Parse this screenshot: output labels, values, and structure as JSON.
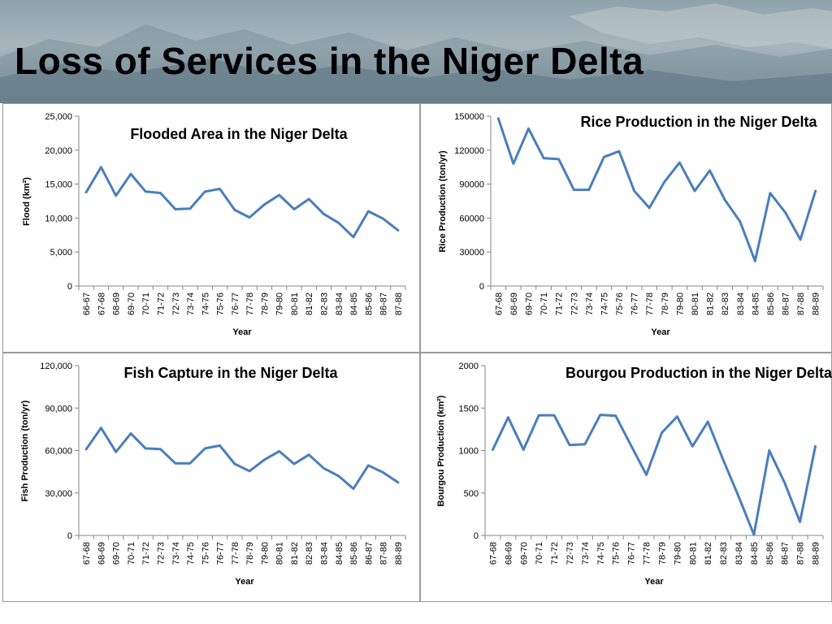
{
  "slide": {
    "title": "Loss of Services in the Niger Delta"
  },
  "colors": {
    "series": "#4a7ebb",
    "axis": "#868686"
  },
  "chart_data": [
    {
      "type": "line",
      "title": "Flooded Area in the Niger Delta",
      "xlabel": "Year",
      "ylabel": "Flood (km²)",
      "ylim": [
        0,
        25000
      ],
      "yticks": [
        "0",
        "5,000",
        "10,000",
        "15,000",
        "20,000",
        "25,000"
      ],
      "categories": [
        "66-67",
        "67-68",
        "68-69",
        "69-70",
        "70-71",
        "71-72",
        "72-73",
        "73-74",
        "74-75",
        "75-76",
        "76-77",
        "77-78",
        "78-79",
        "79-80",
        "80-81",
        "81-82",
        "82-83",
        "83-84",
        "84-85",
        "85-86",
        "86-87",
        "87-88"
      ],
      "series": [
        {
          "values": [
            13800,
            17500,
            13300,
            16500,
            13900,
            13700,
            11300,
            11400,
            13900,
            14300,
            11200,
            10100,
            12000,
            13400,
            11300,
            12800,
            10600,
            9300,
            7200,
            11000,
            9900,
            8200
          ]
        }
      ],
      "legend": "none",
      "grid": false
    },
    {
      "type": "line",
      "title": "Rice Production in the Niger Delta",
      "xlabel": "Year",
      "ylabel": "Rice Production (ton/yr)",
      "ylim": [
        0,
        150000
      ],
      "yticks": [
        "0",
        "30000",
        "60000",
        "90000",
        "120000",
        "150000"
      ],
      "categories": [
        "67-68",
        "68-69",
        "69-70",
        "70-71",
        "71-72",
        "72-73",
        "73-74",
        "74-75",
        "75-76",
        "76-77",
        "77-78",
        "78-79",
        "79-80",
        "80-81",
        "81-82",
        "82-83",
        "83-84",
        "84-85",
        "85-86",
        "86-87",
        "87-88",
        "88-89"
      ],
      "series": [
        {
          "values": [
            148000,
            108000,
            139000,
            113000,
            112000,
            85000,
            85000,
            114000,
            119000,
            84000,
            69000,
            92000,
            109000,
            84000,
            102000,
            76000,
            57000,
            22000,
            82000,
            65000,
            41000,
            84000
          ]
        }
      ],
      "legend": "none",
      "grid": false
    },
    {
      "type": "line",
      "title": "Fish Capture in the Niger Delta",
      "xlabel": "Year",
      "ylabel": "Fish Production (ton/yr)",
      "ylim": [
        0,
        120000
      ],
      "yticks": [
        "0",
        "30,000",
        "60,000",
        "90,000",
        "120,000"
      ],
      "categories": [
        "67-68",
        "68-69",
        "69-70",
        "70-71",
        "71-72",
        "72-73",
        "73-74",
        "74-75",
        "75-76",
        "76-77",
        "77-78",
        "78-79",
        "79-80",
        "80-81",
        "81-82",
        "82-83",
        "83-84",
        "84-85",
        "85-86",
        "86-87",
        "87-88",
        "88-89"
      ],
      "series": [
        {
          "values": [
            61000,
            76000,
            59000,
            72000,
            61500,
            61000,
            51000,
            51000,
            61500,
            63500,
            50500,
            45500,
            53500,
            59500,
            50500,
            57000,
            47500,
            42000,
            33000,
            49500,
            44500,
            37500
          ]
        }
      ],
      "legend": "none",
      "grid": false
    },
    {
      "type": "line",
      "title": "Bourgou Production in the Niger Delta",
      "xlabel": "Year",
      "ylabel": "Bourgou Production (km²)",
      "ylim": [
        0,
        2000
      ],
      "yticks": [
        "0",
        "500",
        "1000",
        "1500",
        "2000"
      ],
      "categories": [
        "67-68",
        "68-69",
        "69-70",
        "70-71",
        "71-72",
        "72-73",
        "73-74",
        "74-75",
        "75-76",
        "76-77",
        "77-78",
        "78-79",
        "79-80",
        "80-81",
        "81-82",
        "82-83",
        "83-84",
        "84-85",
        "85-86",
        "86-87",
        "87-88",
        "88-89"
      ],
      "series": [
        {
          "values": [
            1010,
            1390,
            1010,
            1415,
            1415,
            1065,
            1075,
            1420,
            1410,
            1060,
            715,
            1210,
            1400,
            1050,
            1340,
            890,
            460,
            10,
            1000,
            620,
            160,
            1050
          ]
        }
      ],
      "legend": "none",
      "grid": false
    }
  ]
}
